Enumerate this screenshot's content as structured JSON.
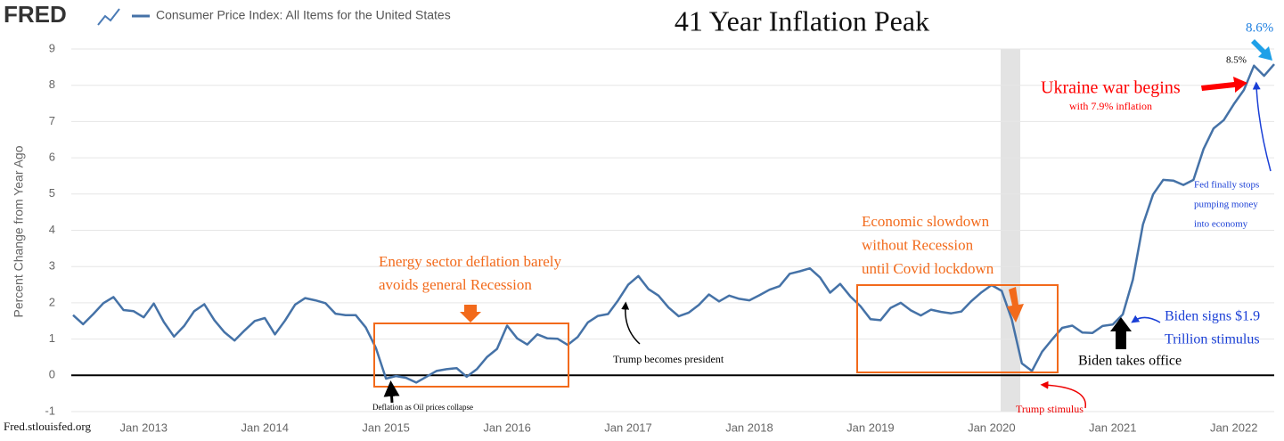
{
  "chart_data": {
    "type": "line",
    "logo": "FRED",
    "title": "41 Year Inflation Peak",
    "ylabel": "Percent Change from Year Ago",
    "source": "Fred.stlouisfed.org",
    "categories": [
      null,
      null,
      null,
      null,
      null,
      null,
      null,
      "Jan 2013",
      null,
      null,
      null,
      null,
      null,
      null,
      null,
      null,
      null,
      null,
      null,
      "Jan 2014",
      null,
      null,
      null,
      null,
      null,
      null,
      null,
      null,
      null,
      null,
      null,
      "Jan 2015",
      null,
      null,
      null,
      null,
      null,
      null,
      null,
      null,
      null,
      null,
      null,
      "Jan 2016",
      null,
      null,
      null,
      null,
      null,
      null,
      null,
      null,
      null,
      null,
      null,
      "Jan 2017",
      null,
      null,
      null,
      null,
      null,
      null,
      null,
      null,
      null,
      null,
      null,
      "Jan 2018",
      null,
      null,
      null,
      null,
      null,
      null,
      null,
      null,
      null,
      null,
      null,
      "Jan 2019",
      null,
      null,
      null,
      null,
      null,
      null,
      null,
      null,
      null,
      null,
      null,
      "Jan 2020",
      null,
      null,
      null,
      null,
      null,
      null,
      null,
      null,
      null,
      null,
      null,
      "Jan 2021",
      null,
      null,
      null,
      null,
      null,
      null,
      null,
      null,
      null,
      null,
      null,
      "Jan 2022",
      null,
      null,
      null,
      null
    ],
    "series": [
      {
        "name": "Consumer Price Index: All Items for the United States",
        "color": "#4572a7",
        "values": [
          1.66,
          1.41,
          1.69,
          1.99,
          2.16,
          1.8,
          1.77,
          1.6,
          1.98,
          1.47,
          1.07,
          1.36,
          1.77,
          1.96,
          1.52,
          1.19,
          0.96,
          1.24,
          1.5,
          1.58,
          1.13,
          1.51,
          1.95,
          2.13,
          2.07,
          1.99,
          1.7,
          1.66,
          1.66,
          1.32,
          0.76,
          -0.09,
          -0.02,
          -0.07,
          -0.2,
          -0.04,
          0.12,
          0.17,
          0.2,
          -0.04,
          0.17,
          0.5,
          0.73,
          1.37,
          1.02,
          0.85,
          1.13,
          1.02,
          1.01,
          0.84,
          1.06,
          1.46,
          1.64,
          1.69,
          2.07,
          2.5,
          2.74,
          2.38,
          2.2,
          1.87,
          1.63,
          1.73,
          1.94,
          2.23,
          2.04,
          2.2,
          2.11,
          2.07,
          2.21,
          2.36,
          2.46,
          2.8,
          2.87,
          2.95,
          2.7,
          2.28,
          2.52,
          2.18,
          1.91,
          1.55,
          1.52,
          1.86,
          2.0,
          1.79,
          1.65,
          1.81,
          1.75,
          1.71,
          1.76,
          2.05,
          2.29,
          2.49,
          2.33,
          1.54,
          0.33,
          0.12,
          0.65,
          0.99,
          1.31,
          1.37,
          1.18,
          1.17,
          1.36,
          1.4,
          1.68,
          2.64,
          4.16,
          4.99,
          5.39,
          5.37,
          5.25,
          5.39,
          6.24,
          6.81,
          7.04,
          7.48,
          7.87,
          8.54,
          8.26,
          8.58
        ]
      }
    ],
    "ylim": [
      -1,
      9
    ],
    "yticks": [
      -1,
      0,
      1,
      2,
      3,
      4,
      5,
      6,
      7,
      8,
      9
    ],
    "grid": true,
    "reference_line": 0,
    "annotations": [
      [
        "Energy sector deflation barely",
        "avoids general Recession"
      ],
      [
        "Economic slowdown",
        "without Recession",
        "until Covid lockdown"
      ],
      [
        "Trump becomes president"
      ],
      [
        "Deflation as Oil prices collapse"
      ],
      [
        "Trump stimulus"
      ],
      [
        "Biden takes office"
      ],
      [
        "Biden signs $1.9",
        "Trillion stimulus"
      ],
      [
        "Ukraine war begins"
      ],
      [
        "with 7.9% inflation"
      ],
      [
        "Fed finally stops",
        "pumping money",
        "into economy"
      ],
      [
        "8.5%"
      ],
      [
        "8.6%"
      ]
    ]
  }
}
